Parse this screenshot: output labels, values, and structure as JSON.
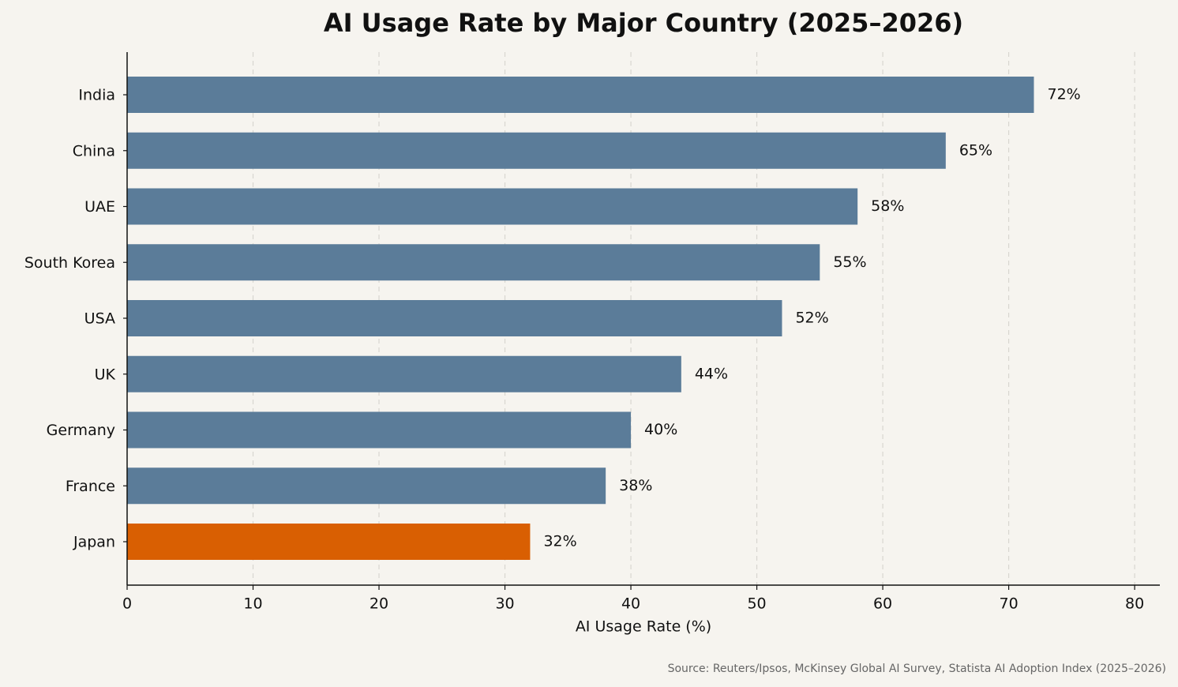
{
  "chart_data": {
    "type": "bar",
    "orientation": "horizontal",
    "title": "AI Usage Rate by Major Country (2025–2026)",
    "xlabel": "AI Usage Rate (%)",
    "source": "Source: Reuters/Ipsos, McKinsey Global AI Survey, Statista AI Adoption Index (2025–2026)",
    "categories": [
      "India",
      "China",
      "UAE",
      "South Korea",
      "USA",
      "UK",
      "Germany",
      "France",
      "Japan"
    ],
    "values": [
      72,
      65,
      58,
      55,
      52,
      44,
      40,
      38,
      32
    ],
    "value_labels": [
      "72%",
      "65%",
      "58%",
      "55%",
      "52%",
      "44%",
      "40%",
      "38%",
      "32%"
    ],
    "colors": [
      "#5b7c99",
      "#5b7c99",
      "#5b7c99",
      "#5b7c99",
      "#5b7c99",
      "#5b7c99",
      "#5b7c99",
      "#5b7c99",
      "#d95f02"
    ],
    "xlim": [
      0,
      82
    ],
    "xticks": [
      0,
      10,
      20,
      30,
      40,
      50,
      60,
      70,
      80
    ],
    "grid": true
  }
}
